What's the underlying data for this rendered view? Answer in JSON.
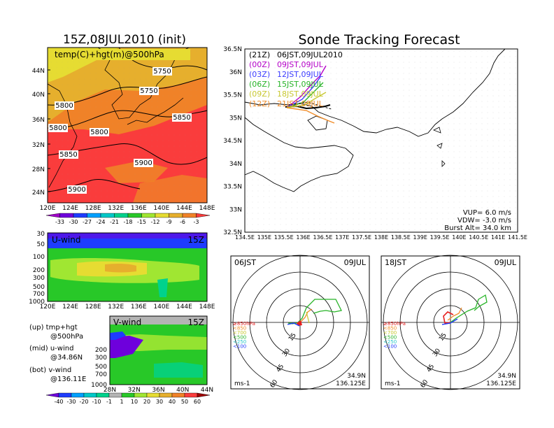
{
  "left": {
    "title": "15Z,08JUL2010 (init)",
    "map_label": "temp(C)+hgt(m)@500hPa",
    "lat_ticks": [
      "44N",
      "40N",
      "36N",
      "32N",
      "28N",
      "24N"
    ],
    "lon_ticks": [
      "120E",
      "124E",
      "128E",
      "132E",
      "136E",
      "140E",
      "144E",
      "148E"
    ],
    "contour_labels": [
      "5750",
      "5800",
      "5750",
      "5800",
      "5850",
      "5800",
      "5850",
      "5900",
      "5900"
    ],
    "temp_colorbar": [
      "-33",
      "-30",
      "-27",
      "-24",
      "-21",
      "-18",
      "-15",
      "-12",
      "-9",
      "-6",
      "-3"
    ],
    "temp_colors": [
      "#a000c8",
      "#6e00dc",
      "#1e3cff",
      "#00a0ff",
      "#00c8c8",
      "#00d28c",
      "#28c828",
      "#a0e632",
      "#e6dc32",
      "#e6af2d",
      "#f08228",
      "#fa3c3c"
    ],
    "uwind": {
      "label": "U-wind",
      "time": "15Z",
      "levels": [
        "30",
        "50",
        "100",
        "200",
        "300",
        "500",
        "700",
        "1000"
      ]
    },
    "vwind": {
      "label": "V-wind",
      "time": "15Z",
      "levels": [
        "200",
        "300",
        "500",
        "700",
        "1000"
      ],
      "lat_ticks": [
        "28N",
        "32N",
        "36N",
        "40N",
        "44N"
      ]
    },
    "notes": [
      {
        "a": "(up) tmp+hgt",
        "b": "@500hPa"
      },
      {
        "a": "(mid) u-wind",
        "b": "@34.86N"
      },
      {
        "a": "(bot) v-wind",
        "b": "@136.11E"
      }
    ],
    "wind_colorbar": [
      "-40",
      "-30",
      "-20",
      "-10",
      "-1",
      "1",
      "10",
      "20",
      "30",
      "40",
      "50",
      "60"
    ],
    "wind_colors": [
      "#6e00dc",
      "#1e3cff",
      "#00a0ff",
      "#00c8c8",
      "#00d28c",
      "#b4b4b4",
      "#28c828",
      "#a0e632",
      "#e6dc32",
      "#e6af2d",
      "#f08228",
      "#fa3c3c",
      "#a00000"
    ]
  },
  "right": {
    "title": "Sonde Tracking Forecast",
    "legend": [
      {
        "tag": "(21Z)",
        "text": "06JST,09JUL2010",
        "color": "#000000"
      },
      {
        "tag": "(00Z)",
        "text": "09JST,09JUL",
        "color": "#b400c8"
      },
      {
        "tag": "(03Z)",
        "text": "12JST,09JUL",
        "color": "#3c3cff"
      },
      {
        "tag": "(06Z)",
        "text": "15JST,09JUL",
        "color": "#28b428"
      },
      {
        "tag": "(09Z)",
        "text": "18JST,09JUL",
        "color": "#c8c832"
      },
      {
        "tag": "(12Z)",
        "text": "21JST,09JUL",
        "color": "#f08c28"
      }
    ],
    "lat_ticks": [
      "36.5N",
      "36N",
      "35.5N",
      "35N",
      "34.5N",
      "34N",
      "33.5N",
      "33N",
      "32.5N"
    ],
    "lon_ticks": [
      "134.5E",
      "135E",
      "135.5E",
      "136E",
      "136.5E",
      "137E",
      "137.5E",
      "138E",
      "138.5E",
      "139E",
      "139.5E",
      "140E",
      "140.5E",
      "141E",
      "141.5E"
    ],
    "vup": "VUP= 6.0 m/s",
    "vdw": "VDW= -3.0 m/s",
    "burst": "Burst Alt= 34.0 km",
    "hodo1": {
      "left": "06JST",
      "right": "09JUL",
      "loc1": "34.9N",
      "loc2": "136.125E",
      "unit": "ms-1"
    },
    "hodo2": {
      "left": "18JST",
      "right": "09JUL",
      "loc1": "34.9N",
      "loc2": "136.125E",
      "unit": "ms-1"
    },
    "hodo_legend": [
      {
        "text": "≥850hPa",
        "color": "#e61e1e"
      },
      {
        "text": "<850",
        "color": "#f08c28"
      },
      {
        "text": "<700",
        "color": "#c8c832"
      },
      {
        "text": "<500",
        "color": "#28b428"
      },
      {
        "text": "<250",
        "color": "#28c8c8"
      },
      {
        "text": "<100",
        "color": "#1e3cff"
      }
    ],
    "hodo_rings": [
      "15",
      "30",
      "45",
      "60"
    ]
  }
}
